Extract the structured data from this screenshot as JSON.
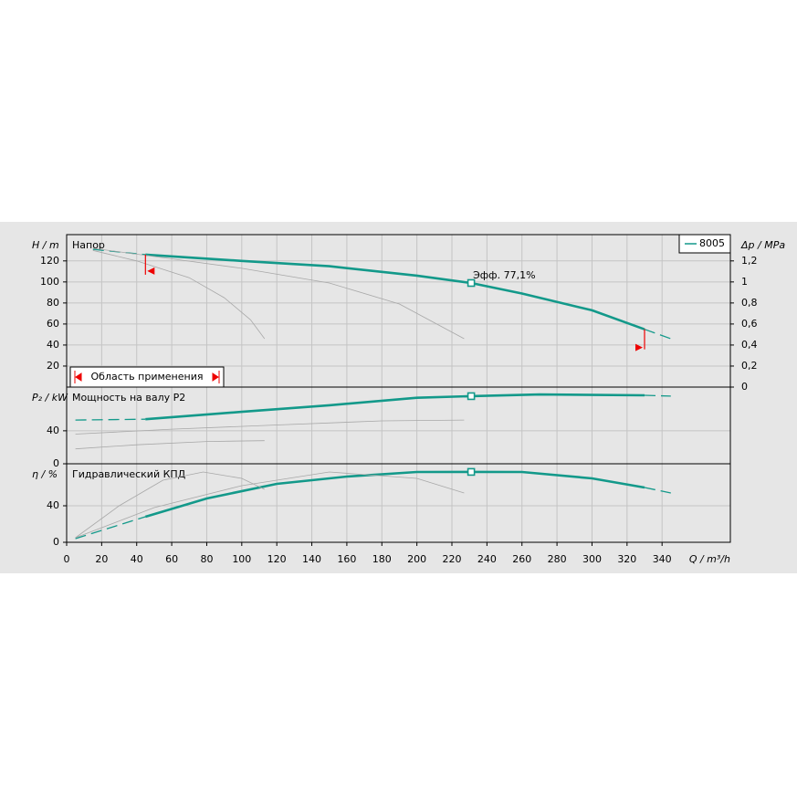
{
  "chart_data": {
    "type": "line",
    "xlabel": "Q / m³/h",
    "xlim": [
      0,
      379
    ],
    "xticks": [
      0,
      20,
      40,
      60,
      80,
      100,
      120,
      140,
      160,
      180,
      200,
      220,
      240,
      260,
      280,
      300,
      320,
      340
    ],
    "grid": true,
    "legend": "upper right",
    "operating_range": [
      45,
      330
    ],
    "operating_range_label": "Область применения",
    "duty_point": {
      "x": 231,
      "values": [
        99,
        82,
        77.1
      ],
      "label": "Эфф.  77,1%"
    },
    "panels": [
      {
        "ylabel": "H / m",
        "title": "Напор",
        "ylim": [
          0,
          145
        ],
        "yticks": [
          20,
          40,
          60,
          80,
          100,
          120
        ],
        "y2label": "Δp / MPa",
        "y2lim": [
          0,
          1.45
        ],
        "y2ticks": [
          0,
          {
            "value": 0.2,
            "label": "0,2"
          },
          {
            "value": 0.4,
            "label": "0,4"
          },
          {
            "value": 0.6,
            "label": "0,6"
          },
          {
            "value": 0.8,
            "label": "0,8"
          },
          1,
          {
            "value": 1.2,
            "label": "1,2"
          }
        ],
        "series": [
          {
            "name": "8005",
            "color": "#13998a",
            "x": [
              15,
              45,
              100,
              150,
              200,
              231,
              260,
              300,
              330,
              345
            ],
            "values": [
              131,
              126,
              120,
              115,
              106,
              99,
              89,
              73,
              55,
              46
            ]
          },
          {
            "color": "#a8a8a8",
            "x": [
              15,
              60,
              100,
              150,
              190,
              227
            ],
            "values": [
              132,
              122,
              113,
              99,
              79,
              46
            ]
          },
          {
            "color": "#a8a8a8",
            "x": [
              15,
              40,
              70,
              90,
              105,
              113
            ],
            "values": [
              130,
              120,
              104,
              85,
              64,
              46
            ]
          }
        ]
      },
      {
        "ylabel": "P₂ / kW",
        "title": "Мощность на валу P2",
        "ylim": [
          0,
          93
        ],
        "yticks": [
          0,
          40
        ],
        "series": [
          {
            "color": "#13998a",
            "x": [
              5,
              45,
              100,
              150,
              200,
              231,
              270,
              330,
              345
            ],
            "values": [
              53,
              54,
              63,
              71,
              80,
              82,
              84,
              83,
              82
            ]
          },
          {
            "color": "#a8a8a8",
            "x": [
              5,
              60,
              120,
              180,
              227
            ],
            "values": [
              36,
              42,
              47,
              52,
              53
            ]
          },
          {
            "color": "#a8a8a8",
            "x": [
              5,
              40,
              80,
              113
            ],
            "values": [
              18,
              23,
              27,
              28
            ]
          }
        ]
      },
      {
        "ylabel": "η / %",
        "title": "Гидравлический КПД",
        "ylim": [
          0,
          86
        ],
        "yticks": [
          0,
          40
        ],
        "series": [
          {
            "color": "#13998a",
            "x": [
              5,
              45,
              80,
              120,
              160,
              200,
              231,
              260,
              300,
              330,
              345
            ],
            "values": [
              4,
              28,
              48,
              64,
              72,
              77,
              77.1,
              77,
              70,
              60,
              54
            ]
          },
          {
            "color": "#a8a8a8",
            "x": [
              5,
              50,
              100,
              150,
              200,
              227
            ],
            "values": [
              5,
              38,
              62,
              77,
              70,
              54
            ]
          },
          {
            "color": "#a8a8a8",
            "x": [
              5,
              30,
              55,
              78,
              100,
              113
            ],
            "values": [
              5,
              40,
              68,
              77,
              70,
              58
            ]
          }
        ]
      }
    ]
  }
}
